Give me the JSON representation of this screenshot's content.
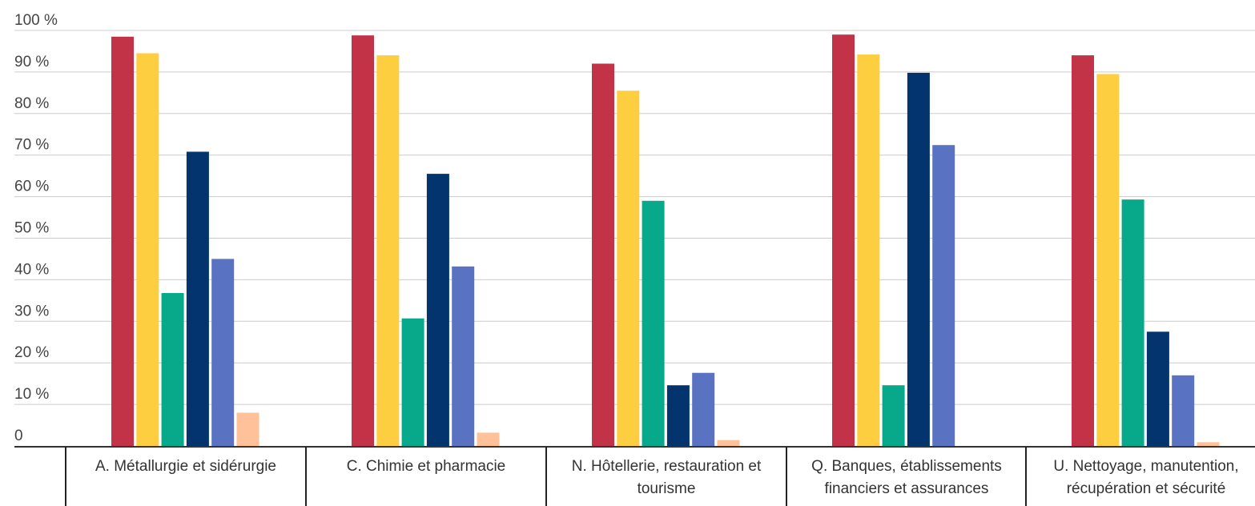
{
  "chart_data": {
    "type": "bar",
    "title": "",
    "xlabel": "",
    "ylabel": "",
    "ylim": [
      0,
      100
    ],
    "y_ticks": [
      "0",
      "10 %",
      "20 %",
      "30 %",
      "40 %",
      "50 %",
      "60 %",
      "70 %",
      "80 %",
      "90 %",
      "100 %"
    ],
    "y_tick_values": [
      0,
      10,
      20,
      30,
      40,
      50,
      60,
      70,
      80,
      90,
      100
    ],
    "grid": true,
    "legend": "none",
    "categories": [
      [
        "A. Métallurgie et sidérurgie"
      ],
      [
        "C. Chimie et pharmacie"
      ],
      [
        "N. Hôtellerie, restauration et",
        "tourisme"
      ],
      [
        "Q. Banques, établissements",
        "financiers et assurances"
      ],
      [
        "U. Nettoyage, manutention,",
        "récupération et sécurité"
      ]
    ],
    "series": [
      {
        "color": "#c23347",
        "values": [
          98.5,
          98.8,
          92.0,
          99.0,
          94.0
        ]
      },
      {
        "color": "#fcce40",
        "values": [
          94.5,
          94.0,
          85.5,
          94.2,
          89.5
        ]
      },
      {
        "color": "#07a98a",
        "values": [
          36.8,
          30.7,
          59.0,
          14.6,
          59.3
        ]
      },
      {
        "color": "#04346e",
        "values": [
          70.8,
          65.5,
          14.6,
          89.8,
          27.5
        ]
      },
      {
        "color": "#5a72c2",
        "values": [
          45.0,
          43.2,
          17.6,
          72.4,
          17.0
        ]
      },
      {
        "color": "#ffc19a",
        "values": [
          8.0,
          3.2,
          1.4,
          0.0,
          0.9
        ]
      }
    ]
  }
}
